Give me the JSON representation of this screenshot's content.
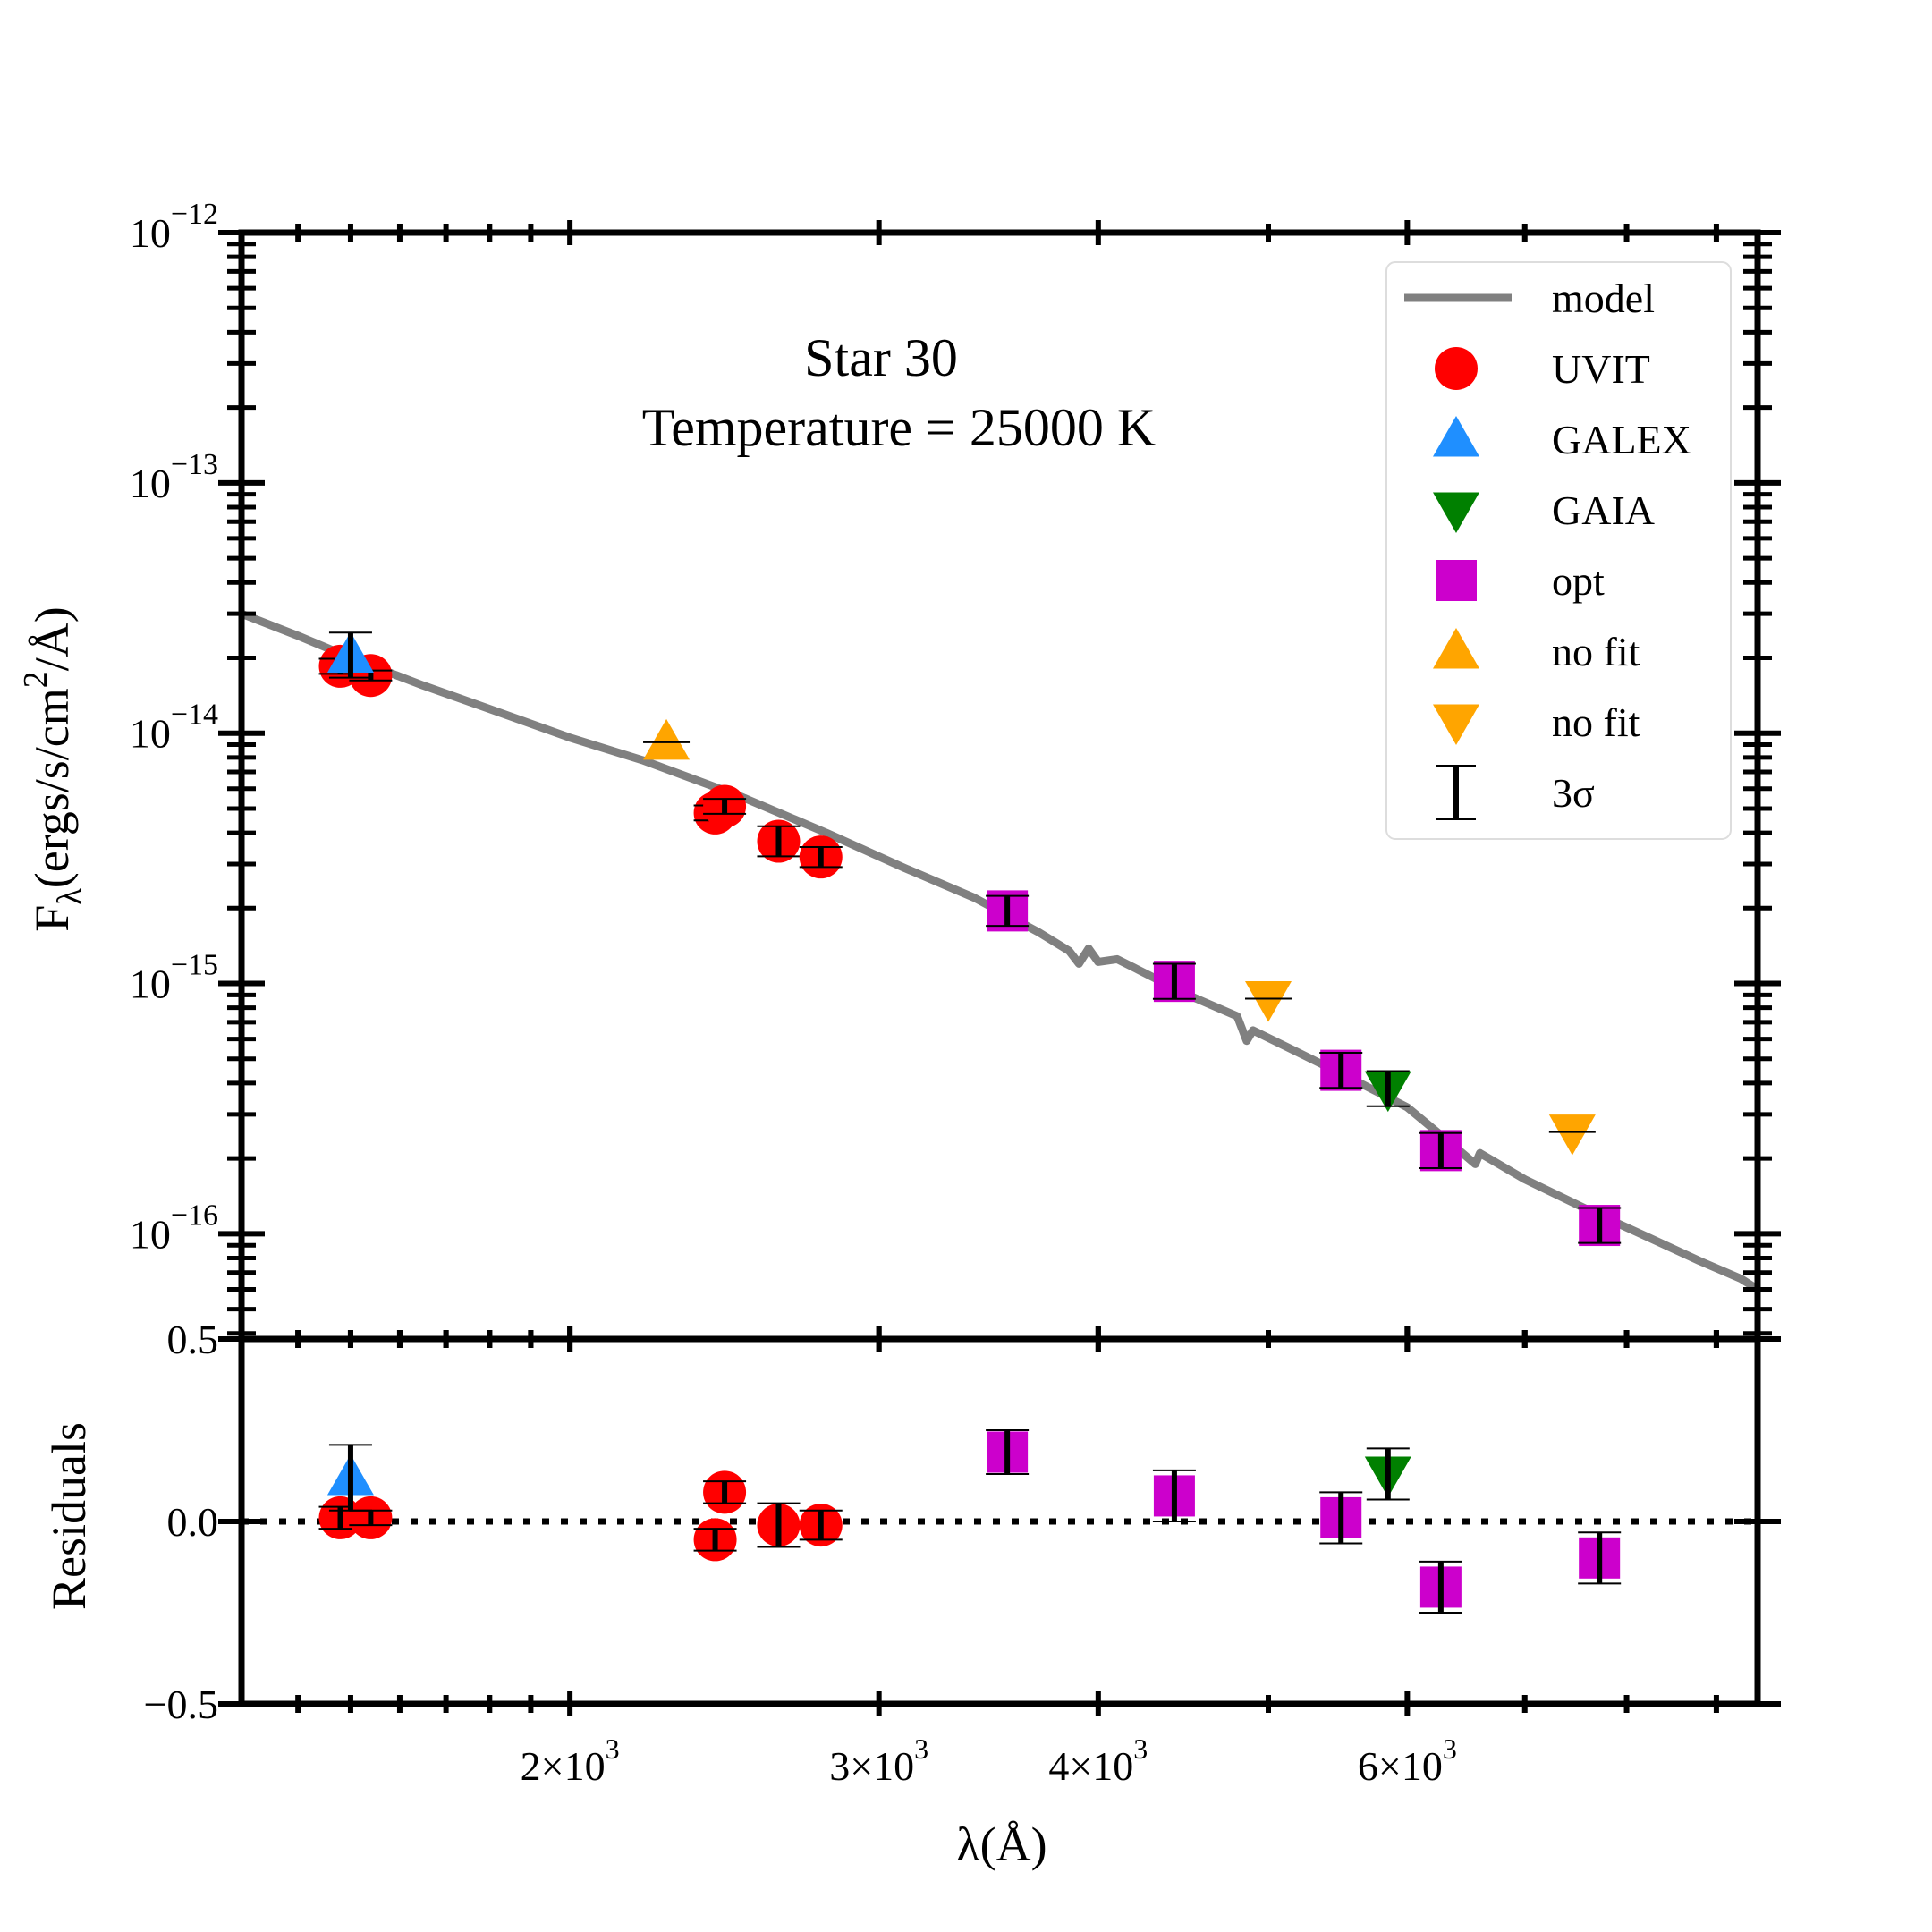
{
  "chart_data": {
    "type": "scatter",
    "title": "Star 30",
    "subtitle": "Temperature = 25000 K",
    "xlabel": "λ(Å)",
    "xscale": "log",
    "xlim": [
      1300,
      9500
    ],
    "xticks": [
      {
        "value": 2000,
        "mant": "2",
        "exp": "3"
      },
      {
        "value": 3000,
        "mant": "3",
        "exp": "3"
      },
      {
        "value": 4000,
        "mant": "4",
        "exp": "3"
      },
      {
        "value": 6000,
        "mant": "6",
        "exp": "3"
      }
    ],
    "xminor": [
      1400,
      1500,
      1600,
      1700,
      1800,
      1900,
      5000,
      7000,
      8000,
      9000
    ],
    "top_panel": {
      "ylabel_main": "F",
      "ylabel_sub": "λ",
      "ylabel_rest": "(ergs/s/cm",
      "ylabel_sup": "2",
      "ylabel_end": "/Å)",
      "yscale": "log",
      "ylim": [
        3.8e-17,
        1e-12
      ],
      "yticks": [
        {
          "value": 1e-12,
          "exp": "−12"
        },
        {
          "value": 1e-13,
          "exp": "−13"
        },
        {
          "value": 1e-14,
          "exp": "−14"
        },
        {
          "value": 1e-15,
          "exp": "−15"
        },
        {
          "value": 1e-16,
          "exp": "−16"
        }
      ]
    },
    "bottom_panel": {
      "ylabel": "Residuals",
      "ylim": [
        -0.5,
        0.5
      ],
      "yticks": [
        {
          "value": 0.5,
          "label": "0.5"
        },
        {
          "value": 0.0,
          "label": "0.0"
        },
        {
          "value": -0.5,
          "label": "−0.5"
        }
      ],
      "zero_line": "dotted"
    },
    "model": {
      "name": "model",
      "color": "#808080",
      "points": [
        [
          1300,
          3e-14
        ],
        [
          1400,
          2.45e-14
        ],
        [
          1500,
          2e-14
        ],
        [
          1650,
          1.55e-14
        ],
        [
          1800,
          1.25e-14
        ],
        [
          2000,
          9.6e-15
        ],
        [
          2200,
          7.8e-15
        ],
        [
          2500,
          5.6e-15
        ],
        [
          2800,
          4e-15
        ],
        [
          3100,
          2.9e-15
        ],
        [
          3400,
          2.2e-15
        ],
        [
          3700,
          1.6e-15
        ],
        [
          3850,
          1.35e-15
        ],
        [
          3900,
          1.2e-15
        ],
        [
          3950,
          1.38e-15
        ],
        [
          4000,
          1.22e-15
        ],
        [
          4100,
          1.25e-15
        ],
        [
          4200,
          1.15e-15
        ],
        [
          4500,
          9e-16
        ],
        [
          4800,
          7.4e-16
        ],
        [
          4860,
          5.9e-16
        ],
        [
          4900,
          6.5e-16
        ],
        [
          5200,
          5.3e-16
        ],
        [
          5600,
          4.1e-16
        ],
        [
          6000,
          3.2e-16
        ],
        [
          6400,
          2.2e-16
        ],
        [
          6560,
          1.9e-16
        ],
        [
          6600,
          2.1e-16
        ],
        [
          7000,
          1.65e-16
        ],
        [
          7600,
          1.25e-16
        ],
        [
          8200,
          9.8e-17
        ],
        [
          8800,
          7.8e-17
        ],
        [
          9300,
          6.6e-17
        ],
        [
          9500,
          6e-17
        ]
      ]
    },
    "series": [
      {
        "name": "UVIT",
        "marker": "circle",
        "color": "#ff0000",
        "points": [
          {
            "x": 1480,
            "y": 1.85e-14,
            "err": 0.03,
            "res": 0.01
          },
          {
            "x": 1540,
            "y": 1.7e-14,
            "err": 0.02,
            "res": 0.01
          },
          {
            "x": 2420,
            "y": 4.8e-15,
            "err": 0.03,
            "res": -0.05
          },
          {
            "x": 2450,
            "y": 5.1e-15,
            "err": 0.03,
            "res": 0.08
          },
          {
            "x": 2630,
            "y": 3.7e-15,
            "err": 0.06,
            "res": -0.01
          },
          {
            "x": 2780,
            "y": 3.2e-15,
            "err": 0.04,
            "res": -0.01
          }
        ]
      },
      {
        "name": "GALEX",
        "marker": "triangle-up",
        "color": "#1f8fff",
        "points": [
          {
            "x": 1500,
            "y": 2.05e-14,
            "err": 0.09,
            "res": 0.12
          }
        ]
      },
      {
        "name": "GAIA",
        "marker": "triangle-down",
        "color": "#008000",
        "points": [
          {
            "x": 5850,
            "y": 3.8e-16,
            "err": 0.07,
            "res": 0.13
          }
        ]
      },
      {
        "name": "opt",
        "marker": "square",
        "color": "#cc00cc",
        "points": [
          {
            "x": 3550,
            "y": 1.95e-15,
            "err": 0.06,
            "res": 0.19
          },
          {
            "x": 4420,
            "y": 1.02e-15,
            "err": 0.07,
            "res": 0.07
          },
          {
            "x": 5500,
            "y": 4.5e-16,
            "err": 0.07,
            "res": 0.01
          },
          {
            "x": 6270,
            "y": 2.15e-16,
            "err": 0.07,
            "res": -0.18
          },
          {
            "x": 7720,
            "y": 1.08e-16,
            "err": 0.07,
            "res": -0.1
          }
        ]
      },
      {
        "name": "no fit",
        "marker": "triangle-up",
        "color": "#ffa500",
        "points": [
          {
            "x": 2270,
            "y": 9.2e-15,
            "res": null
          }
        ]
      },
      {
        "name": "no fit",
        "marker": "triangle-down",
        "color": "#ffa500",
        "points": [
          {
            "x": 5000,
            "y": 8.7e-16,
            "res": null
          },
          {
            "x": 7450,
            "y": 2.55e-16,
            "res": null
          }
        ]
      }
    ],
    "legend": {
      "location": "top-right",
      "entries": [
        {
          "label": "model",
          "marker": "line",
          "color": "#808080"
        },
        {
          "label": "UVIT",
          "marker": "circle",
          "color": "#ff0000"
        },
        {
          "label": "GALEX",
          "marker": "triangle-up",
          "color": "#1f8fff"
        },
        {
          "label": "GAIA",
          "marker": "triangle-down",
          "color": "#008000"
        },
        {
          "label": "opt",
          "marker": "square",
          "color": "#cc00cc"
        },
        {
          "label": "no fit",
          "marker": "triangle-up",
          "color": "#ffa500"
        },
        {
          "label": "no fit",
          "marker": "triangle-down",
          "color": "#ffa500"
        },
        {
          "label": "3σ",
          "marker": "errorbar",
          "color": "#000000"
        }
      ]
    }
  }
}
